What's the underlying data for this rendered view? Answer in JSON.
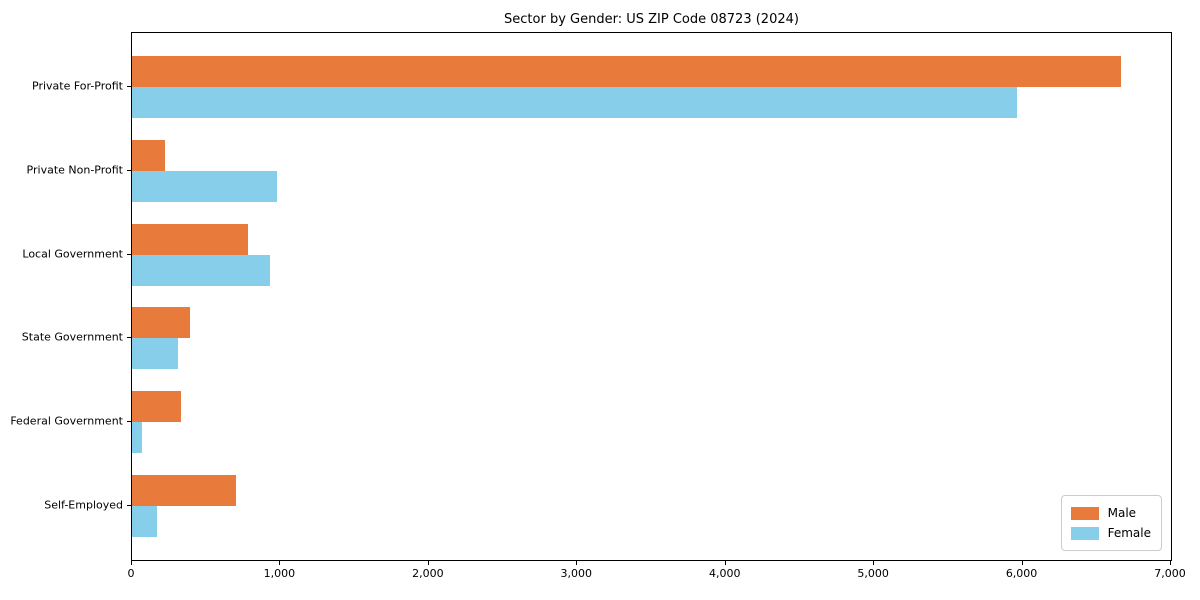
{
  "chart_data": {
    "type": "bar",
    "orientation": "horizontal",
    "title": "Sector by Gender: US ZIP Code 08723 (2024)",
    "categories": [
      "Private For-Profit",
      "Private Non-Profit",
      "Local Government",
      "State Government",
      "Federal Government",
      "Self-Employed"
    ],
    "series": [
      {
        "name": "Male",
        "color": "#E87A3C",
        "values": [
          6660,
          220,
          780,
          390,
          330,
          700
        ]
      },
      {
        "name": "Female",
        "color": "#87CEEB",
        "values": [
          5960,
          975,
          930,
          310,
          70,
          170
        ]
      }
    ],
    "xlabel": "",
    "ylabel": "",
    "xlim": [
      0,
      7000
    ],
    "xticks": [
      {
        "value": 0,
        "label": "0"
      },
      {
        "value": 1000,
        "label": "1,000"
      },
      {
        "value": 2000,
        "label": "2,000"
      },
      {
        "value": 3000,
        "label": "3,000"
      },
      {
        "value": 4000,
        "label": "4,000"
      },
      {
        "value": 5000,
        "label": "5,000"
      },
      {
        "value": 6000,
        "label": "6,000"
      },
      {
        "value": 7000,
        "label": "7,000"
      }
    ],
    "grid": false,
    "legend_position": "lower right",
    "frame_color": "#000000",
    "background_color": "#ffffff"
  }
}
